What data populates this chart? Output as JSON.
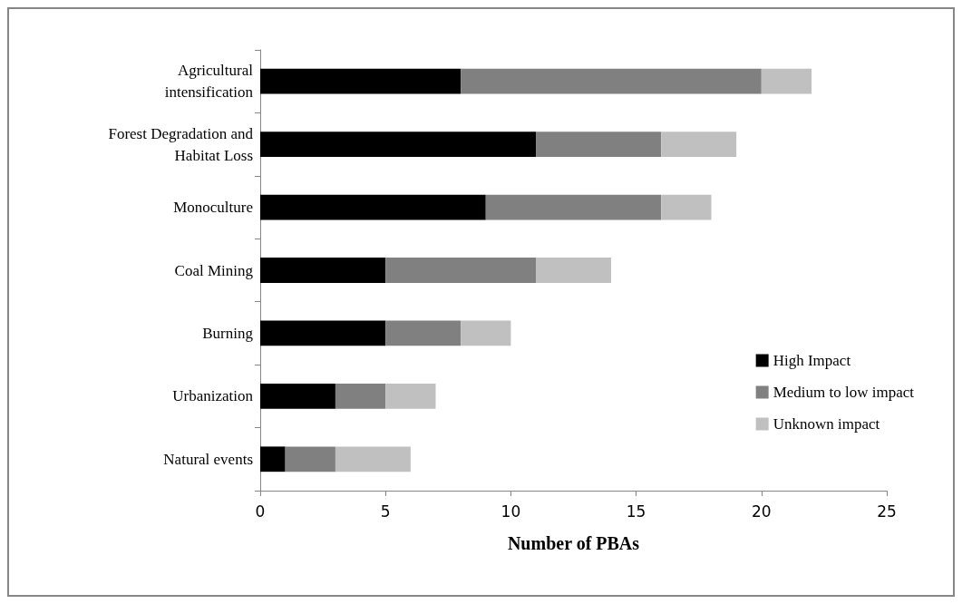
{
  "chart_data": {
    "type": "bar",
    "orientation": "horizontal",
    "stacked": true,
    "xlabel": "Number of PBAs",
    "categories": [
      "Agricultural intensification",
      "Forest Degradation and Habitat Loss",
      "Monoculture",
      "Coal Mining",
      "Burning",
      "Urbanization",
      "Natural events"
    ],
    "series": [
      {
        "name": "High Impact",
        "color": "#000000",
        "values": [
          8,
          11,
          9,
          5,
          5,
          3,
          1
        ]
      },
      {
        "name": "Medium to low impact",
        "color": "#808080",
        "values": [
          12,
          5,
          7,
          6,
          3,
          2,
          2
        ]
      },
      {
        "name": "Unknown impact",
        "color": "#c0c0c0",
        "values": [
          2,
          3,
          2,
          3,
          2,
          2,
          3
        ]
      }
    ],
    "xlim": [
      0,
      25
    ],
    "xticks": [
      0,
      5,
      10,
      15,
      20,
      25
    ],
    "grid": false,
    "legend": "bottom right"
  }
}
